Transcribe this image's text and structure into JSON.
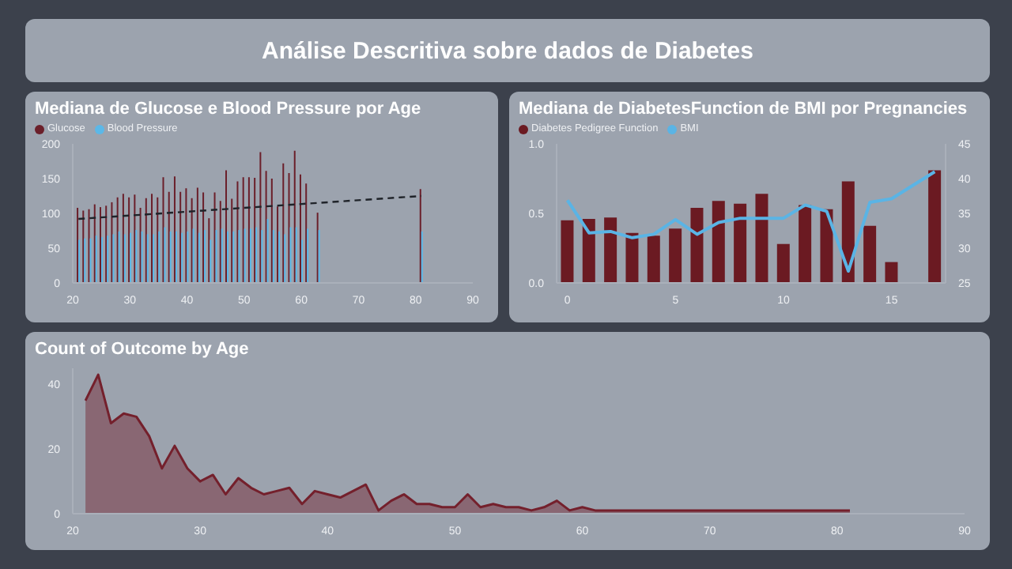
{
  "chart_data": [
    {
      "type": "other",
      "title": "Análise Descritiva sobre dados de Diabetes"
    },
    {
      "type": "bar",
      "title": "Mediana de Glucose e Blood Pressure por Age",
      "x": [
        21,
        22,
        23,
        24,
        25,
        26,
        27,
        28,
        29,
        30,
        31,
        32,
        33,
        34,
        35,
        36,
        37,
        38,
        39,
        40,
        41,
        42,
        43,
        44,
        45,
        46,
        47,
        48,
        49,
        50,
        51,
        52,
        53,
        54,
        55,
        56,
        57,
        58,
        59,
        60,
        61,
        63,
        81
      ],
      "xlim": [
        20,
        90
      ],
      "xticks": [
        20,
        30,
        40,
        50,
        60,
        70,
        80,
        90
      ],
      "ylim": [
        0,
        200
      ],
      "yticks": [
        0,
        50,
        100,
        150,
        200
      ],
      "legend": "top left",
      "series": [
        {
          "name": "Glucose",
          "color": "#6b1f2a",
          "values": [
            108,
            104,
            106,
            113,
            109,
            111,
            116,
            123,
            128,
            123,
            127,
            108,
            122,
            128,
            123,
            152,
            131,
            153,
            131,
            136,
            122,
            137,
            130,
            93,
            130,
            118,
            162,
            121,
            146,
            152,
            152,
            151,
            188,
            161,
            150,
            110,
            172,
            158,
            190,
            156,
            143,
            101,
            135
          ]
        },
        {
          "name": "Blood Pressure",
          "color": "#5bb8e8",
          "values": [
            62,
            64,
            64,
            68,
            66,
            68,
            70,
            74,
            70,
            72,
            76,
            74,
            70,
            70,
            74,
            80,
            74,
            74,
            72,
            74,
            78,
            72,
            76,
            62,
            76,
            78,
            74,
            74,
            76,
            78,
            78,
            80,
            76,
            92,
            76,
            74,
            70,
            80,
            80,
            62,
            78,
            76,
            74
          ]
        },
        {
          "type": "line",
          "color": "#1f2329",
          "line_style": "dashed",
          "marker": "none",
          "x": [
            21,
            81
          ],
          "values": [
            92,
            125
          ]
        }
      ]
    },
    {
      "type": "bar",
      "title": "Mediana de DiabetesFunction de BMI por Pregnancies",
      "x": [
        0,
        1,
        2,
        3,
        4,
        5,
        6,
        7,
        8,
        9,
        10,
        11,
        12,
        13,
        14,
        15,
        17
      ],
      "xlim": [
        -0.5,
        17.5
      ],
      "xticks": [
        0,
        5,
        10,
        15
      ],
      "ylim": [
        0,
        1
      ],
      "yticks": [
        {
          "value": 0,
          "label": "0.0"
        },
        0.5,
        {
          "value": 1,
          "label": "1.0"
        }
      ],
      "y2lim": [
        25,
        45
      ],
      "y2ticks": [
        25,
        30,
        35,
        40,
        45
      ],
      "legend": "top left",
      "series": [
        {
          "name": "Diabetes Pedigree Function",
          "color": "#6b1a22",
          "values": [
            0.45,
            0.46,
            0.47,
            0.36,
            0.34,
            0.39,
            0.54,
            0.59,
            0.57,
            0.64,
            0.28,
            0.56,
            0.53,
            0.73,
            0.41,
            0.15,
            0.81
          ]
        },
        {
          "name": "BMI",
          "type": "line",
          "axis": "y2",
          "color": "#5ab4e5",
          "marker": "none",
          "values": [
            36.9,
            32.2,
            32.4,
            31.5,
            32.0,
            34.1,
            32.0,
            33.7,
            34.3,
            34.3,
            34.3,
            36.2,
            35.3,
            26.7,
            36.6,
            37.1,
            41.0
          ]
        }
      ]
    },
    {
      "type": "area",
      "title": "Count of Outcome by Age",
      "color": "#74202c",
      "x": [
        21,
        22,
        23,
        24,
        25,
        26,
        27,
        28,
        29,
        30,
        31,
        32,
        33,
        34,
        35,
        36,
        37,
        38,
        39,
        40,
        41,
        42,
        43,
        44,
        45,
        46,
        47,
        48,
        49,
        50,
        51,
        52,
        53,
        54,
        55,
        56,
        57,
        58,
        59,
        60,
        61,
        62,
        63,
        81
      ],
      "values": [
        35,
        43,
        28,
        31,
        30,
        24,
        14,
        21,
        14,
        10,
        12,
        6,
        11,
        8,
        6,
        7,
        8,
        3,
        7,
        6,
        5,
        7,
        9,
        1,
        4,
        6,
        3,
        3,
        2,
        2,
        6,
        2,
        3,
        2,
        2,
        1,
        2,
        4,
        1,
        2,
        1,
        1,
        1,
        1
      ],
      "xlim": [
        20,
        90
      ],
      "xticks": [
        20,
        30,
        40,
        50,
        60,
        70,
        80,
        90
      ],
      "ylim": [
        0,
        45
      ],
      "yticks": [
        0,
        20,
        40
      ]
    }
  ]
}
